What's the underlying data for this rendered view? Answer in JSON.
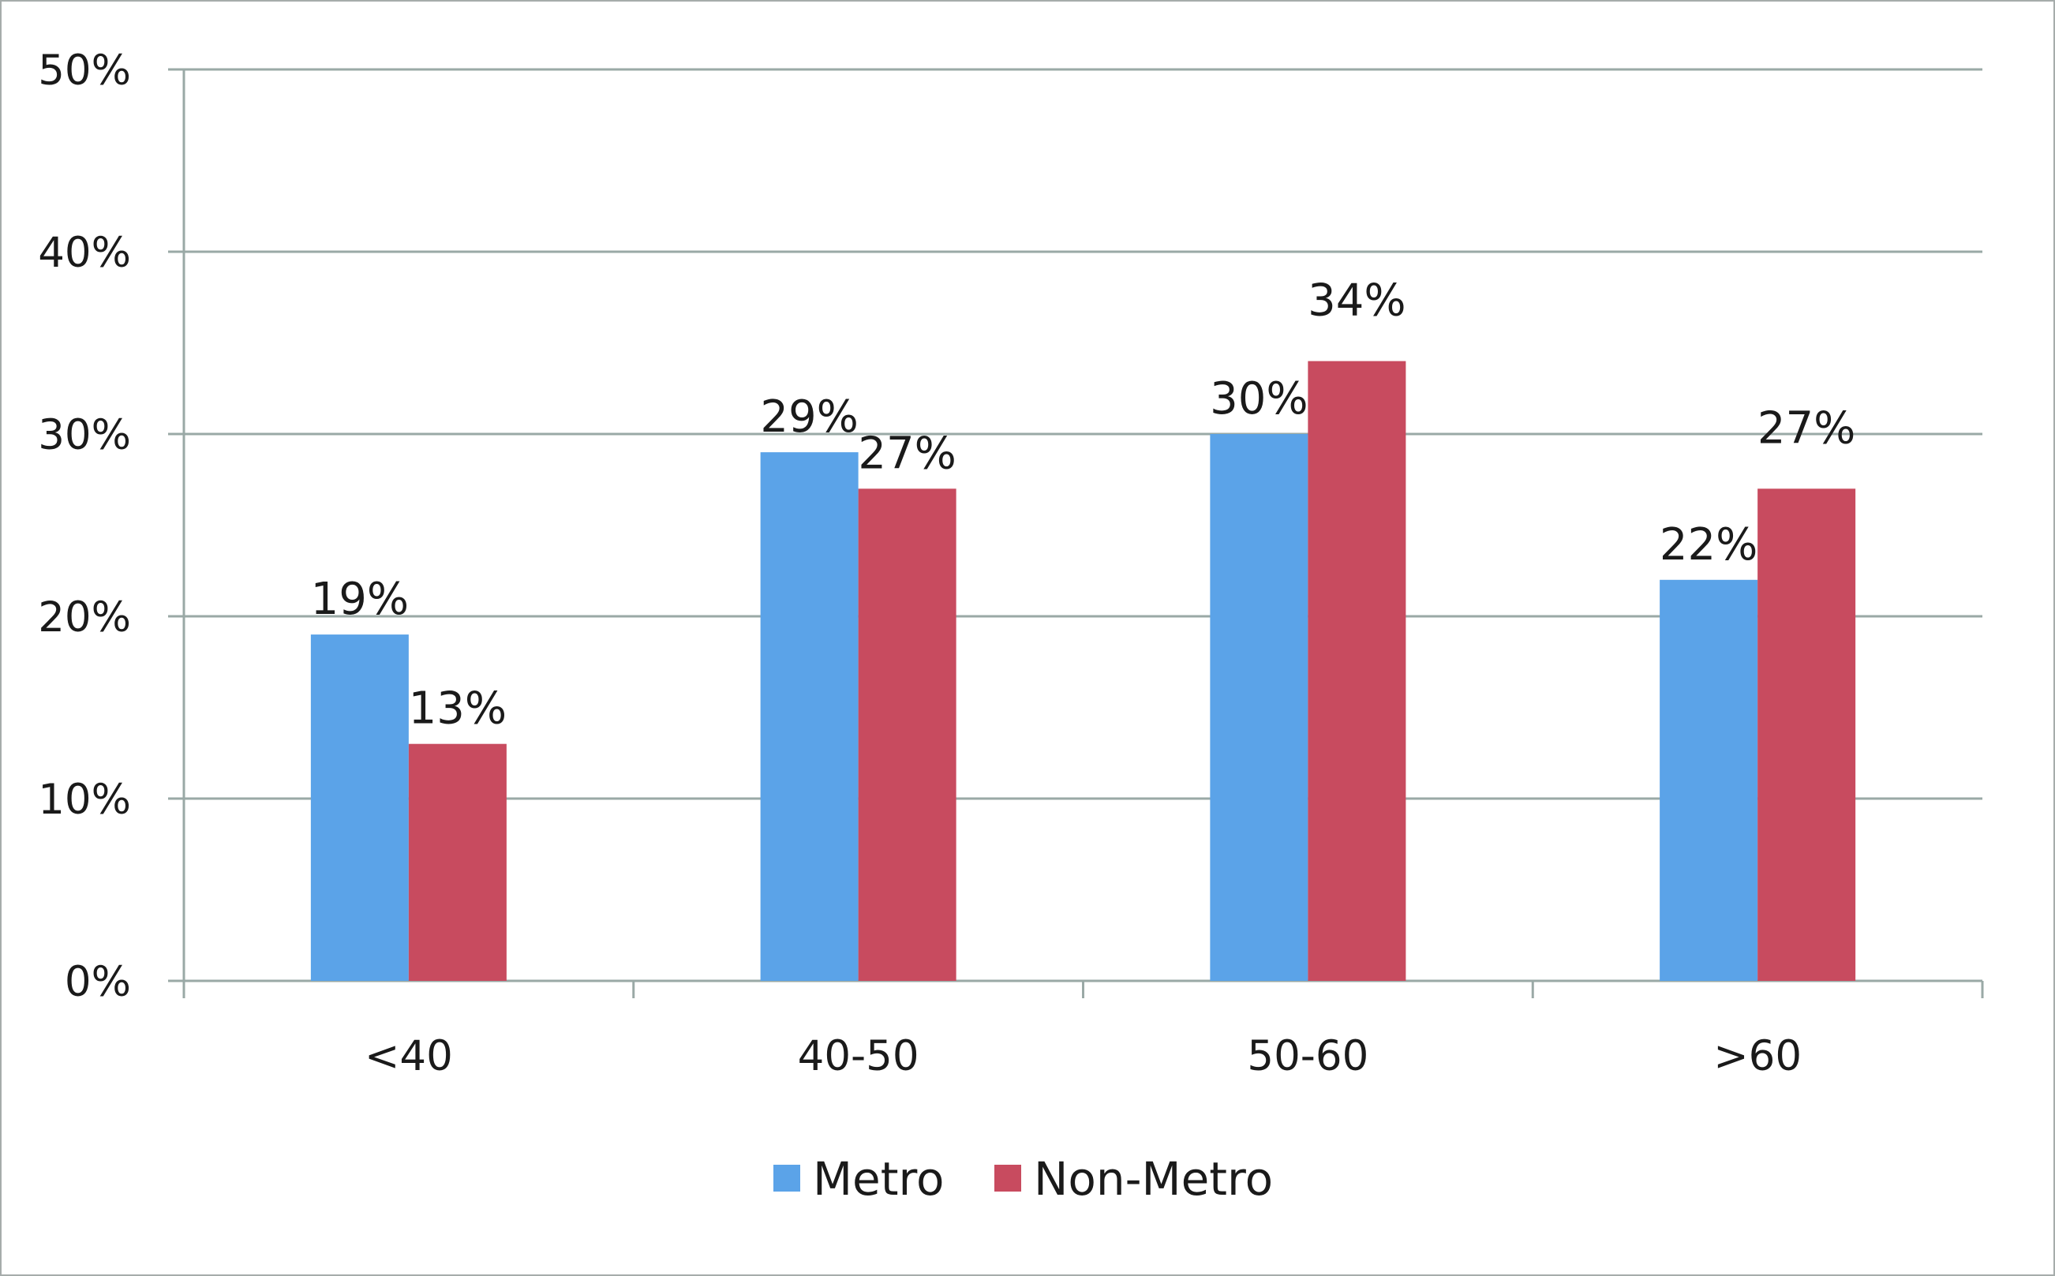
{
  "chart_data": {
    "type": "bar",
    "title": "",
    "xlabel": "",
    "ylabel": "",
    "categories": [
      "<40",
      "40-50",
      "50-60",
      ">60"
    ],
    "series": [
      {
        "name": "Metro",
        "color": "#5ba3e8",
        "values": [
          19,
          29,
          30,
          22
        ],
        "labels": [
          "19%",
          "29%",
          "30%",
          "22%"
        ]
      },
      {
        "name": "Non-Metro",
        "color": "#c84b5f",
        "values": [
          13,
          27,
          34,
          27
        ],
        "labels": [
          "13%",
          "27%",
          "34%",
          "27%"
        ]
      }
    ],
    "ylim": [
      0,
      50
    ],
    "yticks": [
      0,
      10,
      20,
      30,
      40,
      50
    ],
    "ytick_labels": [
      "0%",
      "10%",
      "20%",
      "30%",
      "40%",
      "50%"
    ],
    "grid": true,
    "gridline_color": "#9aa9a6",
    "legend_position": "bottom"
  }
}
